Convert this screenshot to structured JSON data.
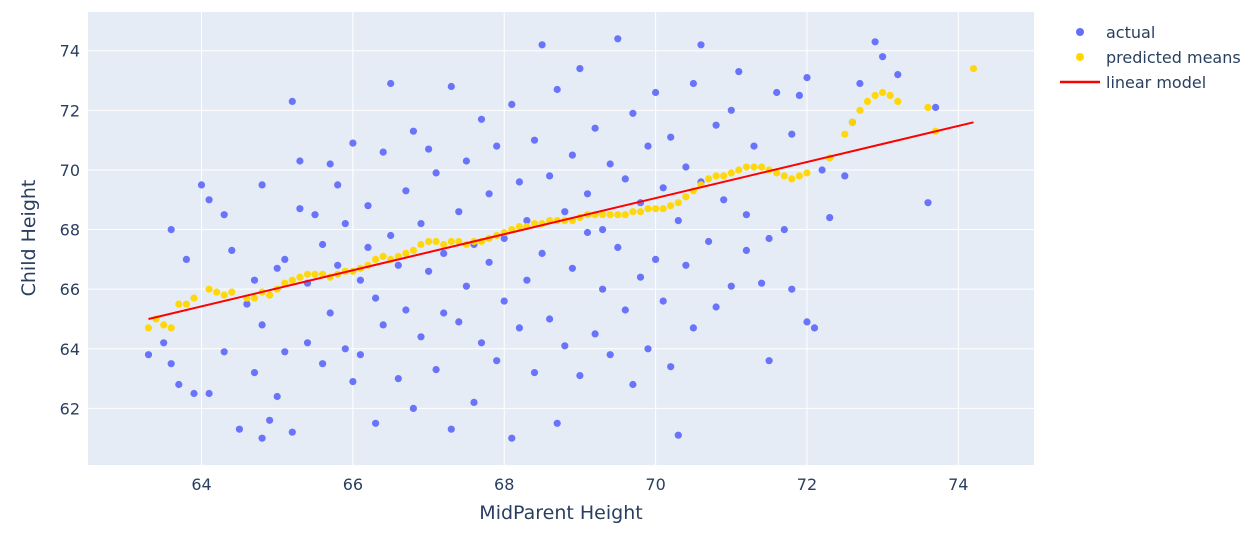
{
  "chart_data": {
    "type": "scatter",
    "xlabel": "MidParent Height",
    "ylabel": "Child Height",
    "xlim": [
      62.5,
      75.0
    ],
    "ylim": [
      60.1,
      75.3
    ],
    "x_ticks": [
      64,
      66,
      68,
      70,
      72,
      74
    ],
    "y_ticks": [
      62,
      64,
      66,
      68,
      70,
      72,
      74
    ],
    "grid": true,
    "legend_position": "top-right",
    "colors": {
      "plot_bg": "#e5ecf6",
      "grid": "#ffffff",
      "text": "#2a3f5f"
    },
    "series": [
      {
        "name": "actual",
        "kind": "markers",
        "color": "#636efa",
        "points": [
          [
            63.3,
            63.8
          ],
          [
            63.5,
            64.2
          ],
          [
            63.6,
            63.5
          ],
          [
            63.6,
            68.0
          ],
          [
            63.7,
            62.8
          ],
          [
            63.8,
            67.0
          ],
          [
            63.9,
            62.5
          ],
          [
            64.0,
            69.5
          ],
          [
            64.1,
            69.0
          ],
          [
            64.1,
            62.5
          ],
          [
            64.3,
            68.5
          ],
          [
            64.3,
            63.9
          ],
          [
            64.4,
            67.3
          ],
          [
            64.5,
            61.3
          ],
          [
            64.6,
            65.5
          ],
          [
            64.7,
            66.3
          ],
          [
            64.7,
            63.2
          ],
          [
            64.8,
            61.0
          ],
          [
            64.8,
            64.8
          ],
          [
            64.8,
            69.5
          ],
          [
            64.9,
            61.6
          ],
          [
            65.0,
            62.4
          ],
          [
            65.0,
            66.7
          ],
          [
            65.1,
            67.0
          ],
          [
            65.1,
            63.9
          ],
          [
            65.2,
            72.3
          ],
          [
            65.2,
            61.2
          ],
          [
            65.3,
            68.7
          ],
          [
            65.3,
            70.3
          ],
          [
            65.4,
            66.2
          ],
          [
            65.4,
            64.2
          ],
          [
            65.5,
            68.5
          ],
          [
            65.6,
            67.5
          ],
          [
            65.6,
            63.5
          ],
          [
            65.7,
            70.2
          ],
          [
            65.7,
            65.2
          ],
          [
            65.8,
            69.5
          ],
          [
            65.8,
            66.8
          ],
          [
            65.9,
            64.0
          ],
          [
            65.9,
            68.2
          ],
          [
            66.0,
            62.9
          ],
          [
            66.0,
            70.9
          ],
          [
            66.1,
            66.3
          ],
          [
            66.1,
            63.8
          ],
          [
            66.2,
            67.4
          ],
          [
            66.2,
            68.8
          ],
          [
            66.3,
            61.5
          ],
          [
            66.3,
            65.7
          ],
          [
            66.4,
            70.6
          ],
          [
            66.4,
            64.8
          ],
          [
            66.5,
            67.8
          ],
          [
            66.5,
            72.9
          ],
          [
            66.6,
            66.8
          ],
          [
            66.6,
            63.0
          ],
          [
            66.7,
            69.3
          ],
          [
            66.7,
            65.3
          ],
          [
            66.8,
            71.3
          ],
          [
            66.8,
            62.0
          ],
          [
            66.9,
            68.2
          ],
          [
            66.9,
            64.4
          ],
          [
            67.0,
            70.7
          ],
          [
            67.0,
            66.6
          ],
          [
            67.1,
            63.3
          ],
          [
            67.1,
            69.9
          ],
          [
            67.2,
            67.2
          ],
          [
            67.2,
            65.2
          ],
          [
            67.3,
            72.8
          ],
          [
            67.3,
            61.3
          ],
          [
            67.4,
            68.6
          ],
          [
            67.4,
            64.9
          ],
          [
            67.5,
            70.3
          ],
          [
            67.5,
            66.1
          ],
          [
            67.6,
            67.5
          ],
          [
            67.6,
            62.2
          ],
          [
            67.7,
            71.7
          ],
          [
            67.7,
            64.2
          ],
          [
            67.8,
            69.2
          ],
          [
            67.8,
            66.9
          ],
          [
            67.9,
            63.6
          ],
          [
            67.9,
            70.8
          ],
          [
            68.0,
            67.7
          ],
          [
            68.0,
            65.6
          ],
          [
            68.1,
            72.2
          ],
          [
            68.1,
            61.0
          ],
          [
            68.2,
            69.6
          ],
          [
            68.2,
            64.7
          ],
          [
            68.3,
            68.3
          ],
          [
            68.3,
            66.3
          ],
          [
            68.4,
            71.0
          ],
          [
            68.4,
            63.2
          ],
          [
            68.5,
            74.2
          ],
          [
            68.5,
            67.2
          ],
          [
            68.6,
            69.8
          ],
          [
            68.6,
            65.0
          ],
          [
            68.7,
            72.7
          ],
          [
            68.7,
            61.5
          ],
          [
            68.8,
            68.6
          ],
          [
            68.8,
            64.1
          ],
          [
            68.9,
            70.5
          ],
          [
            68.9,
            66.7
          ],
          [
            69.0,
            73.4
          ],
          [
            69.0,
            63.1
          ],
          [
            69.1,
            69.2
          ],
          [
            69.1,
            67.9
          ],
          [
            69.2,
            71.4
          ],
          [
            69.2,
            64.5
          ],
          [
            69.3,
            68.0
          ],
          [
            69.3,
            66.0
          ],
          [
            69.4,
            70.2
          ],
          [
            69.4,
            63.8
          ],
          [
            69.5,
            74.4
          ],
          [
            69.5,
            67.4
          ],
          [
            69.6,
            69.7
          ],
          [
            69.6,
            65.3
          ],
          [
            69.7,
            71.9
          ],
          [
            69.7,
            62.8
          ],
          [
            69.8,
            68.9
          ],
          [
            69.8,
            66.4
          ],
          [
            69.9,
            70.8
          ],
          [
            69.9,
            64.0
          ],
          [
            70.0,
            72.6
          ],
          [
            70.0,
            67.0
          ],
          [
            70.1,
            69.4
          ],
          [
            70.1,
            65.6
          ],
          [
            70.2,
            71.1
          ],
          [
            70.2,
            63.4
          ],
          [
            70.3,
            68.3
          ],
          [
            70.3,
            61.1
          ],
          [
            70.4,
            70.1
          ],
          [
            70.4,
            66.8
          ],
          [
            70.5,
            72.9
          ],
          [
            70.5,
            64.7
          ],
          [
            70.6,
            69.6
          ],
          [
            70.6,
            74.2
          ],
          [
            70.7,
            67.6
          ],
          [
            70.8,
            71.5
          ],
          [
            70.8,
            65.4
          ],
          [
            70.9,
            69.0
          ],
          [
            71.0,
            72.0
          ],
          [
            71.0,
            66.1
          ],
          [
            71.1,
            73.3
          ],
          [
            71.2,
            68.5
          ],
          [
            71.2,
            67.3
          ],
          [
            71.3,
            70.8
          ],
          [
            71.4,
            66.2
          ],
          [
            71.5,
            67.7
          ],
          [
            71.5,
            63.6
          ],
          [
            71.6,
            72.6
          ],
          [
            71.7,
            68.0
          ],
          [
            71.8,
            71.2
          ],
          [
            71.8,
            66.0
          ],
          [
            71.9,
            72.5
          ],
          [
            72.0,
            73.1
          ],
          [
            72.0,
            64.9
          ],
          [
            72.1,
            64.7
          ],
          [
            72.2,
            70.0
          ],
          [
            72.3,
            68.4
          ],
          [
            72.5,
            69.8
          ],
          [
            72.6,
            71.6
          ],
          [
            72.7,
            72.9
          ],
          [
            72.9,
            74.3
          ],
          [
            73.0,
            73.8
          ],
          [
            73.2,
            73.2
          ],
          [
            73.6,
            68.9
          ],
          [
            73.7,
            72.1
          ]
        ]
      },
      {
        "name": "predicted means",
        "kind": "markers",
        "color": "#ffd700",
        "points": [
          [
            63.3,
            64.7
          ],
          [
            63.4,
            65.0
          ],
          [
            63.5,
            64.8
          ],
          [
            63.6,
            64.7
          ],
          [
            63.7,
            65.5
          ],
          [
            63.8,
            65.5
          ],
          [
            63.9,
            65.7
          ],
          [
            64.1,
            66.0
          ],
          [
            64.2,
            65.9
          ],
          [
            64.3,
            65.8
          ],
          [
            64.4,
            65.9
          ],
          [
            64.6,
            65.7
          ],
          [
            64.7,
            65.7
          ],
          [
            64.8,
            65.9
          ],
          [
            64.9,
            65.8
          ],
          [
            65.0,
            66.0
          ],
          [
            65.1,
            66.2
          ],
          [
            65.2,
            66.3
          ],
          [
            65.3,
            66.4
          ],
          [
            65.4,
            66.5
          ],
          [
            65.5,
            66.5
          ],
          [
            65.6,
            66.5
          ],
          [
            65.7,
            66.4
          ],
          [
            65.8,
            66.5
          ],
          [
            65.9,
            66.6
          ],
          [
            66.0,
            66.6
          ],
          [
            66.1,
            66.7
          ],
          [
            66.2,
            66.8
          ],
          [
            66.3,
            67.0
          ],
          [
            66.4,
            67.1
          ],
          [
            66.5,
            67.0
          ],
          [
            66.6,
            67.1
          ],
          [
            66.7,
            67.2
          ],
          [
            66.8,
            67.3
          ],
          [
            66.9,
            67.5
          ],
          [
            67.0,
            67.6
          ],
          [
            67.1,
            67.6
          ],
          [
            67.2,
            67.5
          ],
          [
            67.3,
            67.6
          ],
          [
            67.4,
            67.6
          ],
          [
            67.5,
            67.5
          ],
          [
            67.6,
            67.6
          ],
          [
            67.7,
            67.6
          ],
          [
            67.8,
            67.7
          ],
          [
            67.9,
            67.8
          ],
          [
            68.0,
            67.9
          ],
          [
            68.1,
            68.0
          ],
          [
            68.2,
            68.1
          ],
          [
            68.3,
            68.1
          ],
          [
            68.4,
            68.2
          ],
          [
            68.5,
            68.2
          ],
          [
            68.6,
            68.3
          ],
          [
            68.7,
            68.3
          ],
          [
            68.8,
            68.3
          ],
          [
            68.9,
            68.3
          ],
          [
            69.0,
            68.4
          ],
          [
            69.1,
            68.5
          ],
          [
            69.2,
            68.5
          ],
          [
            69.3,
            68.5
          ],
          [
            69.4,
            68.5
          ],
          [
            69.5,
            68.5
          ],
          [
            69.6,
            68.5
          ],
          [
            69.7,
            68.6
          ],
          [
            69.8,
            68.6
          ],
          [
            69.9,
            68.7
          ],
          [
            70.0,
            68.7
          ],
          [
            70.1,
            68.7
          ],
          [
            70.2,
            68.8
          ],
          [
            70.3,
            68.9
          ],
          [
            70.4,
            69.1
          ],
          [
            70.5,
            69.3
          ],
          [
            70.6,
            69.5
          ],
          [
            70.7,
            69.7
          ],
          [
            70.8,
            69.8
          ],
          [
            70.9,
            69.8
          ],
          [
            71.0,
            69.9
          ],
          [
            71.1,
            70.0
          ],
          [
            71.2,
            70.1
          ],
          [
            71.3,
            70.1
          ],
          [
            71.4,
            70.1
          ],
          [
            71.5,
            70.0
          ],
          [
            71.6,
            69.9
          ],
          [
            71.7,
            69.8
          ],
          [
            71.8,
            69.7
          ],
          [
            71.9,
            69.8
          ],
          [
            72.0,
            69.9
          ],
          [
            72.3,
            70.4
          ],
          [
            72.5,
            71.2
          ],
          [
            72.6,
            71.6
          ],
          [
            72.7,
            72.0
          ],
          [
            72.8,
            72.3
          ],
          [
            72.9,
            72.5
          ],
          [
            73.0,
            72.6
          ],
          [
            73.1,
            72.5
          ],
          [
            73.2,
            72.3
          ],
          [
            73.6,
            72.1
          ],
          [
            73.7,
            71.3
          ],
          [
            74.2,
            73.4
          ]
        ]
      },
      {
        "name": "linear model",
        "kind": "line",
        "color": "#ff0000",
        "points": [
          [
            63.3,
            65.0
          ],
          [
            74.2,
            71.6
          ]
        ]
      }
    ]
  }
}
